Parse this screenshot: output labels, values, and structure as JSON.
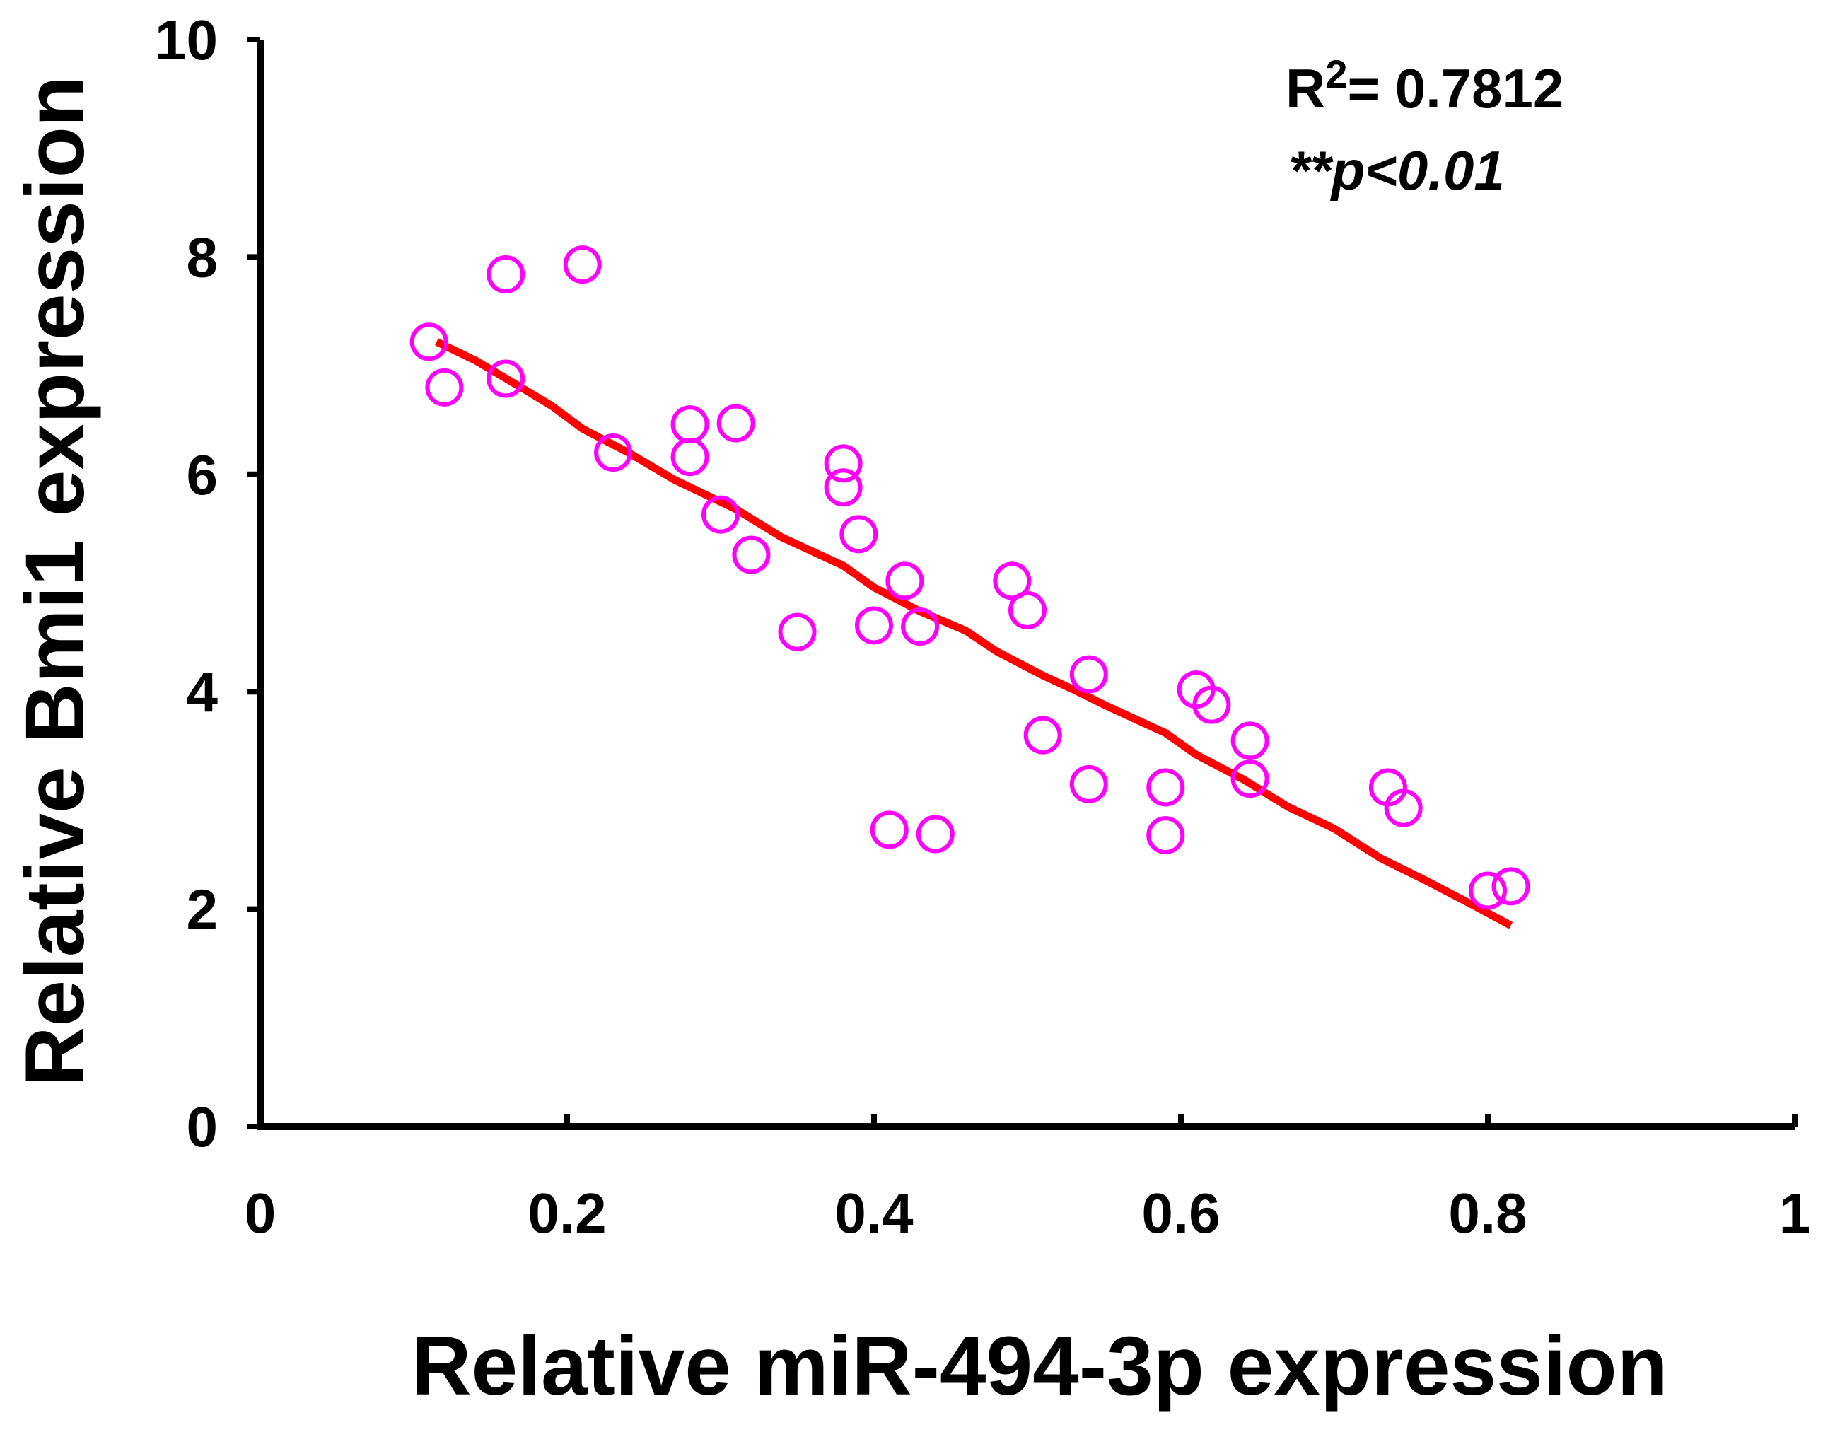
{
  "chart_data": {
    "type": "scatter",
    "title": "",
    "xlabel": "Relative miR-494-3p expression",
    "ylabel": "Relative Bmi1 expression",
    "xlim": [
      0,
      1
    ],
    "ylim": [
      0,
      10
    ],
    "xticks": [
      "0",
      "0.2",
      "0.4",
      "0.6",
      "0.8",
      "1"
    ],
    "yticks": [
      "0",
      "2",
      "4",
      "6",
      "8",
      "10"
    ],
    "grid": false,
    "point_color": "#ff00ff",
    "trend_color": "#ff0000",
    "annotations": {
      "r2_label": "R",
      "r2_sup": "2",
      "r2_value": "= 0.7812",
      "p_stars": "**",
      "p_text": "p<0.01"
    },
    "points": [
      {
        "x": 0.11,
        "y": 7.22
      },
      {
        "x": 0.12,
        "y": 6.8
      },
      {
        "x": 0.16,
        "y": 7.84
      },
      {
        "x": 0.16,
        "y": 6.88
      },
      {
        "x": 0.21,
        "y": 7.93
      },
      {
        "x": 0.23,
        "y": 6.2
      },
      {
        "x": 0.28,
        "y": 6.46
      },
      {
        "x": 0.28,
        "y": 6.16
      },
      {
        "x": 0.31,
        "y": 6.47
      },
      {
        "x": 0.3,
        "y": 5.63
      },
      {
        "x": 0.32,
        "y": 5.26
      },
      {
        "x": 0.35,
        "y": 4.55
      },
      {
        "x": 0.38,
        "y": 6.1
      },
      {
        "x": 0.38,
        "y": 5.88
      },
      {
        "x": 0.39,
        "y": 5.45
      },
      {
        "x": 0.4,
        "y": 4.61
      },
      {
        "x": 0.42,
        "y": 5.02
      },
      {
        "x": 0.43,
        "y": 4.6
      },
      {
        "x": 0.41,
        "y": 2.73
      },
      {
        "x": 0.44,
        "y": 2.69
      },
      {
        "x": 0.49,
        "y": 5.02
      },
      {
        "x": 0.5,
        "y": 4.75
      },
      {
        "x": 0.51,
        "y": 3.6
      },
      {
        "x": 0.54,
        "y": 4.16
      },
      {
        "x": 0.54,
        "y": 3.15
      },
      {
        "x": 0.59,
        "y": 3.12
      },
      {
        "x": 0.59,
        "y": 2.68
      },
      {
        "x": 0.61,
        "y": 4.02
      },
      {
        "x": 0.62,
        "y": 3.88
      },
      {
        "x": 0.645,
        "y": 3.55
      },
      {
        "x": 0.645,
        "y": 3.2
      },
      {
        "x": 0.735,
        "y": 3.12
      },
      {
        "x": 0.745,
        "y": 2.93
      },
      {
        "x": 0.8,
        "y": 2.17
      },
      {
        "x": 0.815,
        "y": 2.21
      }
    ],
    "trend_line": {
      "x": [
        0.115,
        0.14,
        0.17,
        0.19,
        0.21,
        0.24,
        0.27,
        0.31,
        0.34,
        0.38,
        0.4,
        0.43,
        0.46,
        0.48,
        0.51,
        0.53,
        0.55,
        0.59,
        0.61,
        0.64,
        0.67,
        0.7,
        0.73,
        0.76,
        0.79,
        0.815
      ],
      "y": [
        7.22,
        7.05,
        6.8,
        6.63,
        6.42,
        6.2,
        5.95,
        5.68,
        5.42,
        5.16,
        4.96,
        4.74,
        4.56,
        4.37,
        4.15,
        4.02,
        3.88,
        3.62,
        3.42,
        3.2,
        2.94,
        2.74,
        2.47,
        2.26,
        2.04,
        1.85
      ]
    }
  }
}
